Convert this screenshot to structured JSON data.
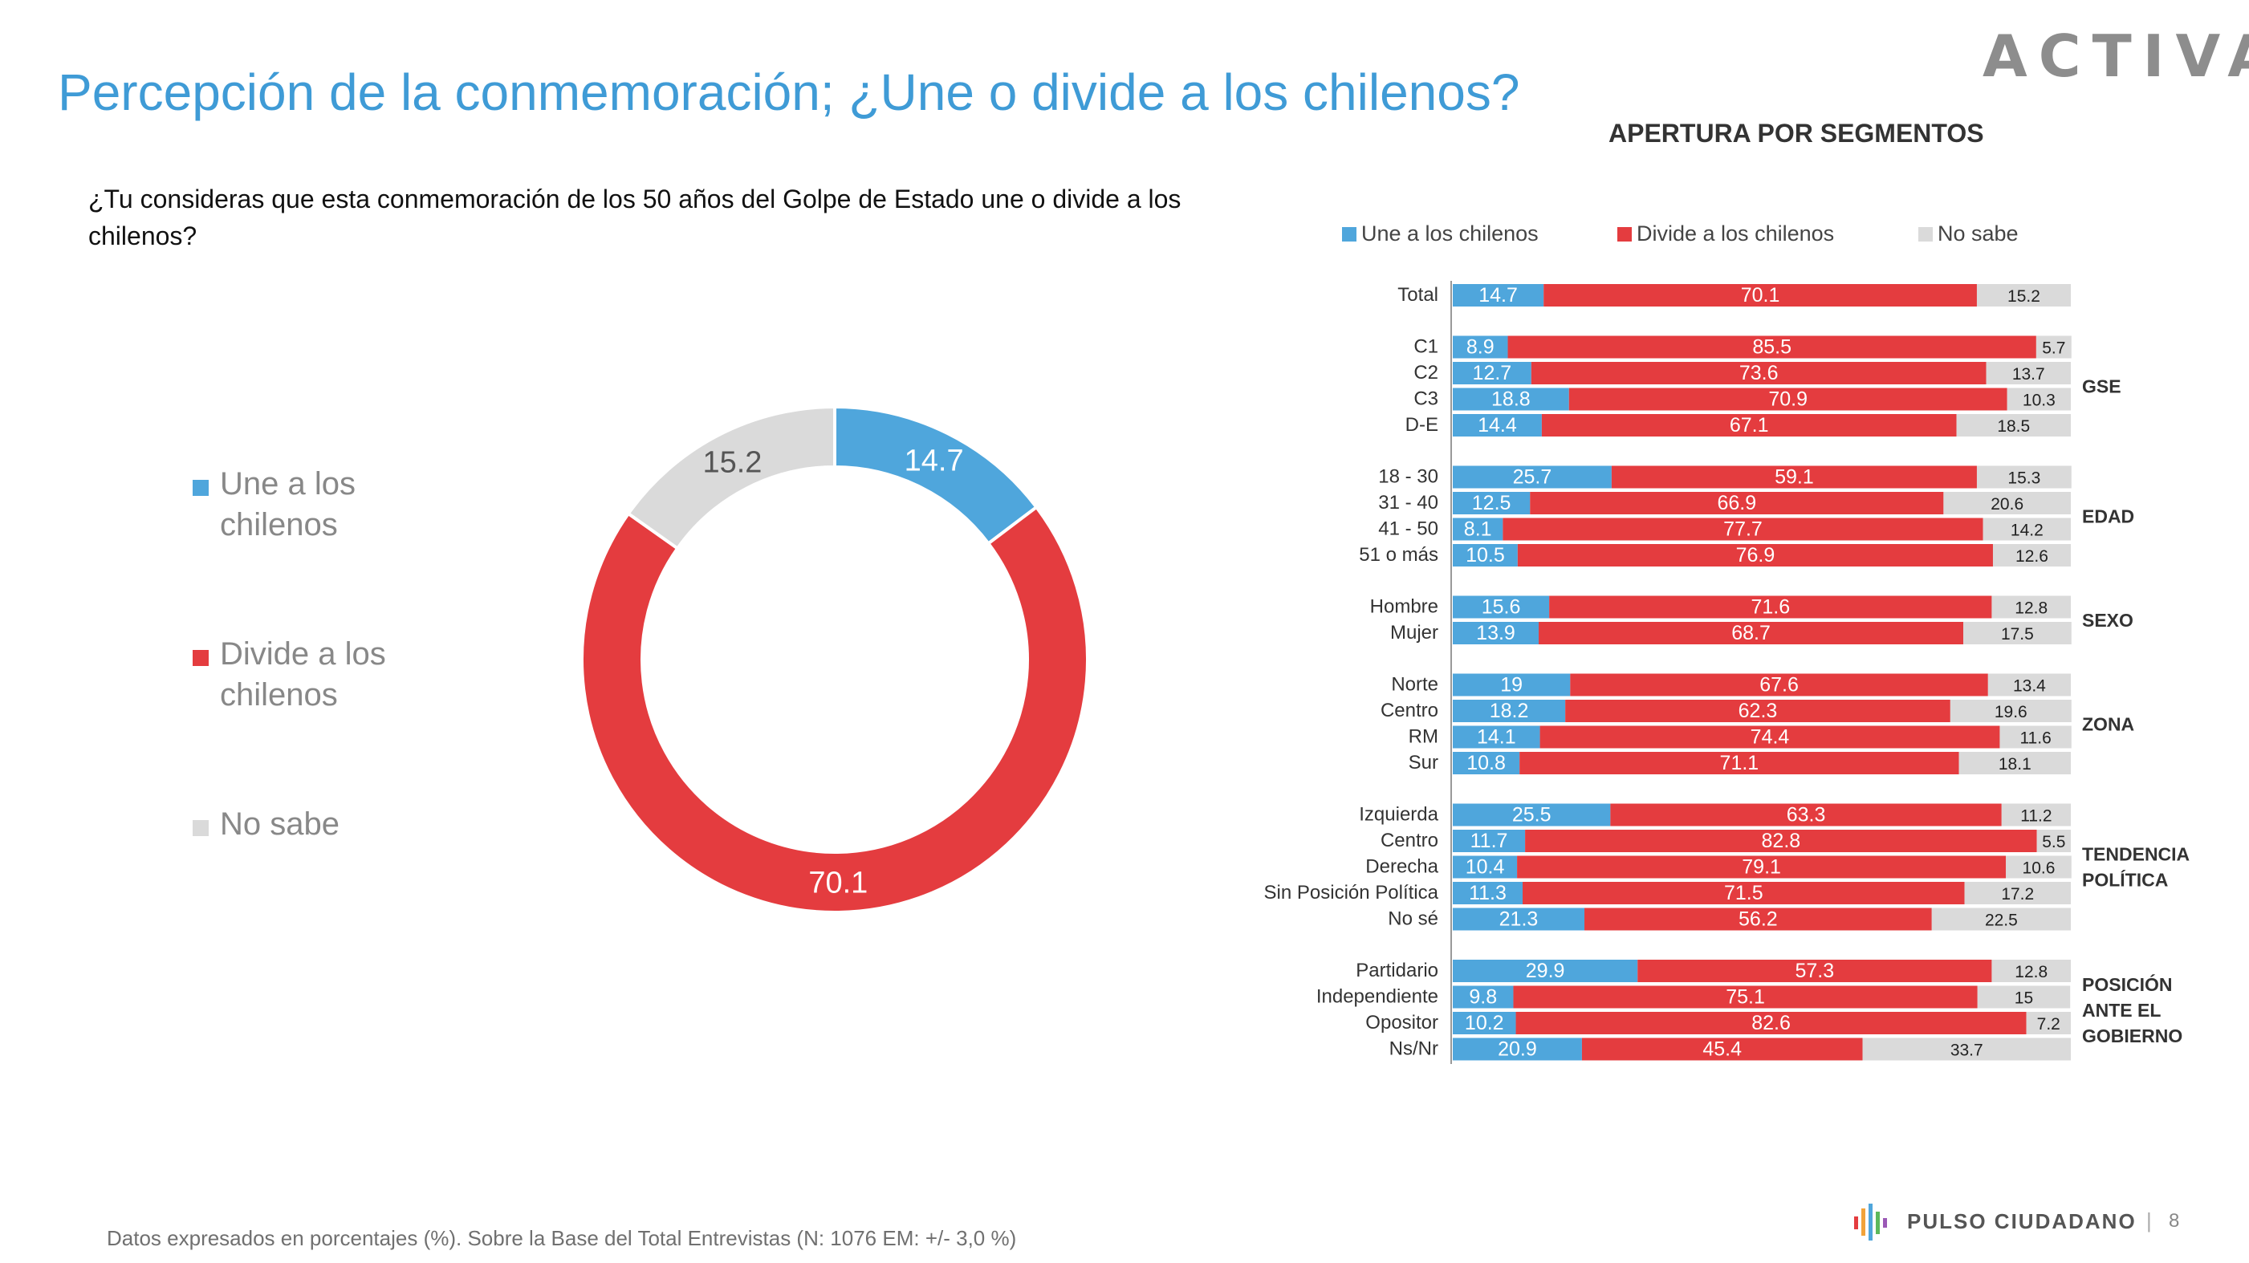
{
  "title": "Percepción de la conmemoración;  ¿Une o divide a los chilenos?",
  "logo": "ACTIVA",
  "question": "¿Tu consideras que esta conmemoración de los 50 años del Golpe de Estado une o divide a los chilenos?",
  "segments_title": "APERTURA POR SEGMENTOS",
  "footer_note": "Datos expresados en porcentajes (%). Sobre la Base del Total Entrevistas (N: 1076 EM: +/- 3,0 %)",
  "brand": "PULSO CIUDADANO",
  "page_separator": "|",
  "page_number": "8",
  "colors": {
    "une": "#4fa6dc",
    "divide": "#e43c3f",
    "nosabe": "#dadada",
    "title": "#3f9bd6"
  },
  "chart_data": [
    {
      "type": "pie",
      "variant": "donut",
      "categories": [
        "Une a los chilenos",
        "Divide a los chilenos",
        "No sabe"
      ],
      "legend_lines": [
        [
          "Une a los",
          "chilenos"
        ],
        [
          "Divide a los",
          "chilenos"
        ],
        [
          "No sabe"
        ]
      ],
      "values": [
        14.7,
        70.1,
        15.2
      ],
      "legend_position": "left"
    },
    {
      "type": "bar",
      "orientation": "horizontal",
      "stacked": true,
      "legend_position": "top",
      "series": [
        {
          "name": "Une a los chilenos",
          "key": "une"
        },
        {
          "name": "Divide a los chilenos",
          "key": "divide"
        },
        {
          "name": "No sabe",
          "key": "nosabe"
        }
      ],
      "groups": [
        {
          "label": [],
          "rows": [
            {
              "label": "Total",
              "values": [
                14.7,
                70.1,
                15.2
              ]
            }
          ]
        },
        {
          "label": [
            "GSE"
          ],
          "rows": [
            {
              "label": "C1",
              "values": [
                8.9,
                85.5,
                5.7
              ]
            },
            {
              "label": "C2",
              "values": [
                12.7,
                73.6,
                13.7
              ]
            },
            {
              "label": "C3",
              "values": [
                18.8,
                70.9,
                10.3
              ]
            },
            {
              "label": "D-E",
              "values": [
                14.4,
                67.1,
                18.5
              ]
            }
          ]
        },
        {
          "label": [
            "EDAD"
          ],
          "rows": [
            {
              "label": "18 - 30",
              "values": [
                25.7,
                59.1,
                15.3
              ]
            },
            {
              "label": "31 - 40",
              "values": [
                12.5,
                66.9,
                20.6
              ]
            },
            {
              "label": "41 - 50",
              "values": [
                8.1,
                77.7,
                14.2
              ]
            },
            {
              "label": "51 o más",
              "values": [
                10.5,
                76.9,
                12.6
              ]
            }
          ]
        },
        {
          "label": [
            "SEXO"
          ],
          "rows": [
            {
              "label": "Hombre",
              "values": [
                15.6,
                71.6,
                12.8
              ]
            },
            {
              "label": "Mujer",
              "values": [
                13.9,
                68.7,
                17.5
              ]
            }
          ]
        },
        {
          "label": [
            "ZONA"
          ],
          "rows": [
            {
              "label": "Norte",
              "values": [
                19,
                67.6,
                13.4
              ]
            },
            {
              "label": "Centro",
              "values": [
                18.2,
                62.3,
                19.6
              ]
            },
            {
              "label": "RM",
              "values": [
                14.1,
                74.4,
                11.6
              ]
            },
            {
              "label": "Sur",
              "values": [
                10.8,
                71.1,
                18.1
              ]
            }
          ]
        },
        {
          "label": [
            "TENDENCIA",
            "POLÍTICA"
          ],
          "rows": [
            {
              "label": "Izquierda",
              "values": [
                25.5,
                63.3,
                11.2
              ]
            },
            {
              "label": "Centro",
              "values": [
                11.7,
                82.8,
                5.5
              ]
            },
            {
              "label": "Derecha",
              "values": [
                10.4,
                79.1,
                10.6
              ]
            },
            {
              "label": "Sin Posición Política",
              "values": [
                11.3,
                71.5,
                17.2
              ]
            },
            {
              "label": "No sé",
              "values": [
                21.3,
                56.2,
                22.5
              ]
            }
          ]
        },
        {
          "label": [
            "POSICIÓN",
            "ANTE EL",
            "GOBIERNO"
          ],
          "rows": [
            {
              "label": "Partidario",
              "values": [
                29.9,
                57.3,
                12.8
              ]
            },
            {
              "label": "Independiente",
              "values": [
                9.8,
                75.1,
                15
              ]
            },
            {
              "label": "Opositor",
              "values": [
                10.2,
                82.6,
                7.2
              ]
            },
            {
              "label": "Ns/Nr",
              "values": [
                20.9,
                45.4,
                33.7
              ]
            }
          ]
        }
      ]
    }
  ]
}
